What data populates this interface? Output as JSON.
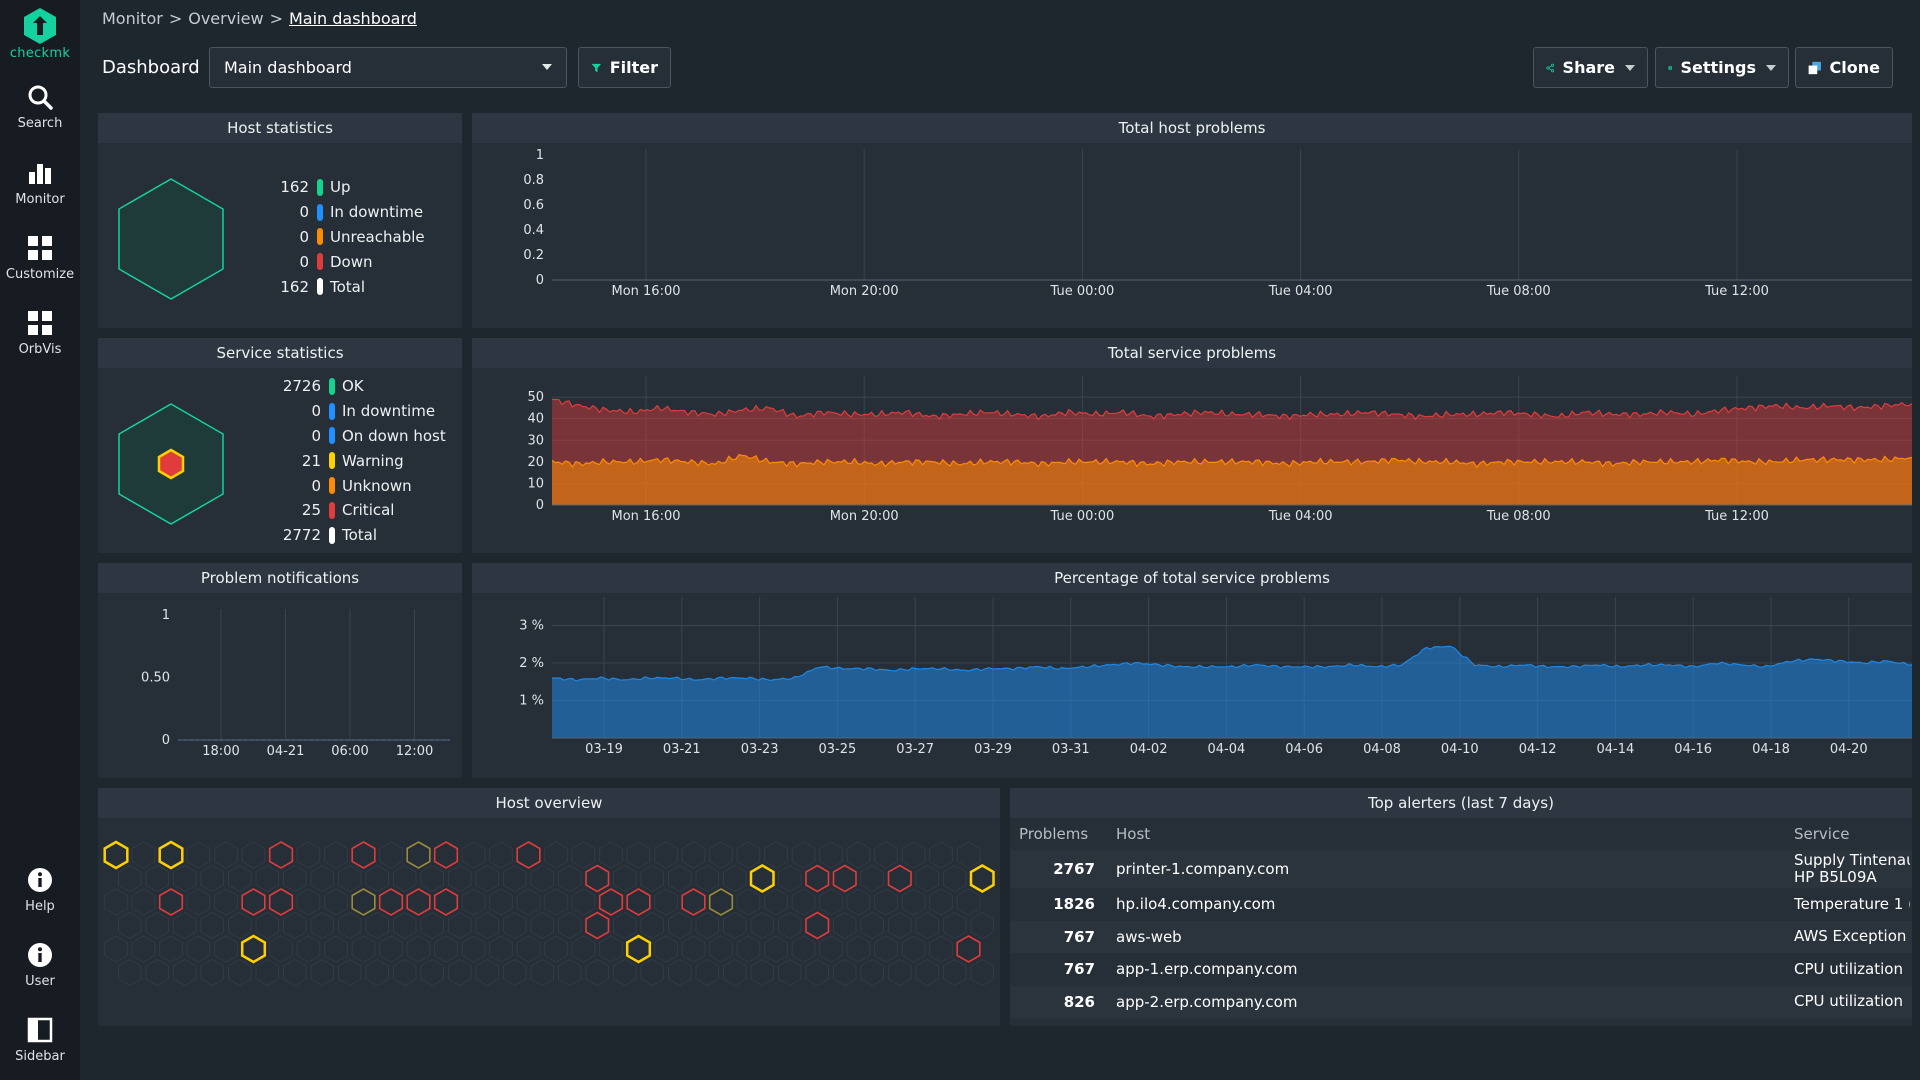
{
  "app": {
    "logo_text": "checkmk"
  },
  "sidebar": {
    "items": [
      {
        "label": "Search",
        "icon": "search-icon"
      },
      {
        "label": "Monitor",
        "icon": "bar-chart-icon"
      },
      {
        "label": "Customize",
        "icon": "grid-icon"
      },
      {
        "label": "OrbVis",
        "icon": "grid-icon"
      },
      {
        "label": "Help",
        "icon": "info-icon"
      },
      {
        "label": "User",
        "icon": "info-icon"
      },
      {
        "label": "Sidebar",
        "icon": "sidebar-toggle-icon"
      }
    ]
  },
  "breadcrumb": [
    "Monitor",
    "Overview",
    "Main dashboard"
  ],
  "breadcrumb_sep": ">",
  "header": {
    "dashboard_label": "Dashboard",
    "selected_dashboard": "Main dashboard",
    "filter_label": "Filter",
    "share_label": "Share",
    "settings_label": "Settings",
    "clone_label": "Clone"
  },
  "colors": {
    "accent": "#15d1a0",
    "ok": "#13d38e",
    "downtime": "#1e90ff",
    "unreachable": "#ff8c00",
    "down": "#e03c3c",
    "warning": "#ffd000",
    "critical": "#e03c3c",
    "total": "#ffffff",
    "service_red": "#e03c3c",
    "service_orange": "#ff8c00",
    "percent_blue": "#1e88e5"
  },
  "host_statistics": {
    "title": "Host statistics",
    "rows": [
      {
        "value": "162",
        "label": "Up",
        "color": "#13d38e"
      },
      {
        "value": "0",
        "label": "In downtime",
        "color": "#1e90ff"
      },
      {
        "value": "0",
        "label": "Unreachable",
        "color": "#ff8c00"
      },
      {
        "value": "0",
        "label": "Down",
        "color": "#e03c3c"
      },
      {
        "value": "162",
        "label": "Total",
        "color": "#ffffff"
      }
    ]
  },
  "service_statistics": {
    "title": "Service statistics",
    "rows": [
      {
        "value": "2726",
        "label": "OK",
        "color": "#13d38e"
      },
      {
        "value": "0",
        "label": "In downtime",
        "color": "#1e90ff"
      },
      {
        "value": "0",
        "label": "On down host",
        "color": "#1e90ff"
      },
      {
        "value": "21",
        "label": "Warning",
        "color": "#ffd000"
      },
      {
        "value": "0",
        "label": "Unknown",
        "color": "#ff8c00"
      },
      {
        "value": "25",
        "label": "Critical",
        "color": "#e03c3c"
      },
      {
        "value": "2772",
        "label": "Total",
        "color": "#ffffff"
      }
    ]
  },
  "problem_notifications": {
    "title": "Problem notifications"
  },
  "host_overview": {
    "title": "Host overview"
  },
  "top_alerters": {
    "title": "Top alerters (last 7 days)",
    "columns": [
      "Problems",
      "Host",
      "Service"
    ],
    "rows": [
      {
        "problems": "2767",
        "host": "printer-1.company.com",
        "service": "Supply Tintenau",
        "service2": "HP B5L09A"
      },
      {
        "problems": "1826",
        "host": "hp.ilo4.company.com",
        "service": "Temperature 1 (",
        "service2": ""
      },
      {
        "problems": "767",
        "host": "aws-web",
        "service": "AWS Exception",
        "service2": ""
      },
      {
        "problems": "767",
        "host": "app-1.erp.company.com",
        "service": "CPU utilization",
        "service2": ""
      },
      {
        "problems": "826",
        "host": "app-2.erp.company.com",
        "service": "CPU utilization",
        "service2": ""
      }
    ]
  },
  "chart_data": [
    {
      "type": "line",
      "title": "Total host problems",
      "x_tick_labels": [
        "Mon 16:00",
        "Mon 20:00",
        "Tue 00:00",
        "Tue 04:00",
        "Tue 08:00",
        "Tue 12:00"
      ],
      "y_tick_labels": [
        "0",
        "0.2",
        "0.4",
        "0.6",
        "0.8",
        "1"
      ],
      "y_ticks": [
        0,
        0.2,
        0.4,
        0.6,
        0.8,
        1
      ],
      "ylim": [
        0,
        1
      ],
      "series": [
        {
          "values": [
            0,
            0,
            0,
            0,
            0,
            0,
            0
          ]
        }
      ],
      "grid": true
    },
    {
      "type": "area",
      "title": "Total service problems",
      "x_tick_labels": [
        "Mon 16:00",
        "Mon 20:00",
        "Tue 00:00",
        "Tue 04:00",
        "Tue 08:00",
        "Tue 12:00"
      ],
      "y_tick_labels": [
        "0",
        "10",
        "20",
        "30",
        "40",
        "50"
      ],
      "y_ticks": [
        0,
        10,
        20,
        30,
        40,
        50
      ],
      "ylim": [
        0,
        57
      ],
      "series": [
        {
          "color": "#e03c3c",
          "values": [
            49,
            46,
            44,
            43,
            45,
            43,
            42,
            44,
            45,
            41,
            43,
            42,
            42,
            43,
            41,
            42,
            43,
            42,
            41,
            43,
            42,
            43,
            41,
            42,
            43,
            42,
            42,
            41,
            42,
            42,
            43,
            42,
            41,
            42,
            42,
            43,
            42,
            41,
            43,
            42,
            42,
            43,
            42,
            44,
            45,
            46,
            45,
            46,
            45,
            46,
            47
          ]
        },
        {
          "color": "#ff8c00",
          "values": [
            20,
            19,
            20,
            20,
            21,
            20,
            19,
            23,
            20,
            19,
            20,
            20,
            19,
            20,
            20,
            19,
            20,
            20,
            19,
            20,
            20,
            20,
            19,
            20,
            20,
            20,
            20,
            19,
            20,
            20,
            20,
            21,
            20,
            20,
            19,
            20,
            20,
            20,
            20,
            19,
            20,
            20,
            20,
            21,
            20,
            20,
            21,
            21,
            21,
            21,
            22
          ]
        }
      ],
      "grid": true
    },
    {
      "type": "line",
      "title": "Problem notifications",
      "x_tick_labels": [
        "18:00",
        "04-21",
        "06:00",
        "12:00"
      ],
      "y_tick_labels": [
        "0",
        "0.50",
        "1"
      ],
      "y_ticks": [
        0,
        0.5,
        1
      ],
      "ylim": [
        0,
        1
      ],
      "series": [
        {
          "values": [
            0,
            0,
            0,
            0,
            0
          ]
        }
      ],
      "grid": true
    },
    {
      "type": "area",
      "title": "Percentage of total service problems",
      "x_tick_labels": [
        "03-19",
        "03-21",
        "03-23",
        "03-25",
        "03-27",
        "03-29",
        "03-31",
        "04-02",
        "04-04",
        "04-06",
        "04-08",
        "04-10",
        "04-12",
        "04-14",
        "04-16",
        "04-18",
        "04-20"
      ],
      "y_tick_labels": [
        "1 %",
        "2 %",
        "3 %"
      ],
      "y_ticks": [
        1,
        2,
        3
      ],
      "ylim": [
        0,
        3.6
      ],
      "series": [
        {
          "color": "#1e88e5",
          "values": [
            1.6,
            1.55,
            1.6,
            1.55,
            1.6,
            1.6,
            1.55,
            1.6,
            1.6,
            1.55,
            1.6,
            1.9,
            1.85,
            1.85,
            1.8,
            1.85,
            1.85,
            1.8,
            1.85,
            1.85,
            1.9,
            1.85,
            1.9,
            1.95,
            2.0,
            1.95,
            1.9,
            1.9,
            1.9,
            1.95,
            1.9,
            1.9,
            1.9,
            1.95,
            1.9,
            1.95,
            2.4,
            2.45,
            1.95,
            1.9,
            1.95,
            1.9,
            1.9,
            1.95,
            1.9,
            1.95,
            1.95,
            1.9,
            2.0,
            1.95,
            1.9,
            2.05,
            2.1,
            2.05,
            2.0,
            2.05,
            1.95
          ]
        }
      ],
      "grid": true
    }
  ]
}
